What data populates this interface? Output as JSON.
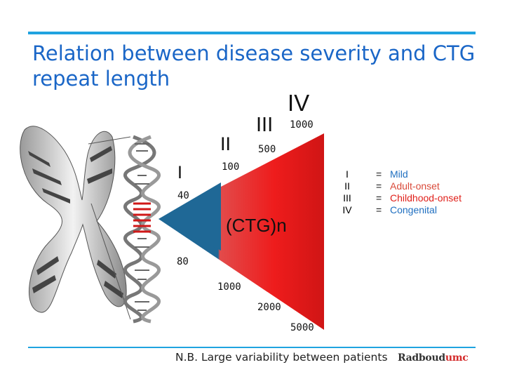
{
  "title": "Relation between disease severity and CTG repeat length",
  "classes": {
    "I": "I",
    "II": "II",
    "III": "III",
    "IV": "IV"
  },
  "repeat_labels": {
    "l40": "40",
    "l80": "80",
    "l100": "100",
    "l500": "500",
    "l1000_top": "1000",
    "l1000_bottom": "1000",
    "l2000": "2000",
    "l5000": "5000"
  },
  "center_label": "(CTG)n",
  "legend": [
    {
      "class": "I",
      "eq": "=",
      "severity": "Mild",
      "color": "#1f6fc0"
    },
    {
      "class": "II",
      "eq": "=",
      "severity": "Adult-onset",
      "color": "#d94a3a"
    },
    {
      "class": "III",
      "eq": "=",
      "severity": "Childhood-onset",
      "color": "#e0201a"
    },
    {
      "class": "IV",
      "eq": "=",
      "severity": "Congenital",
      "color": "#1f6fc0"
    }
  ],
  "colors": {
    "accent_line": "#1fa3e0",
    "title": "#1a66c7",
    "wedge_blue": "#1f6896",
    "wedge_red": "#e81a1a"
  },
  "footer": {
    "note": "N.B. Large variability between patients",
    "brand_main": "Radboud",
    "brand_accent": "umc"
  }
}
